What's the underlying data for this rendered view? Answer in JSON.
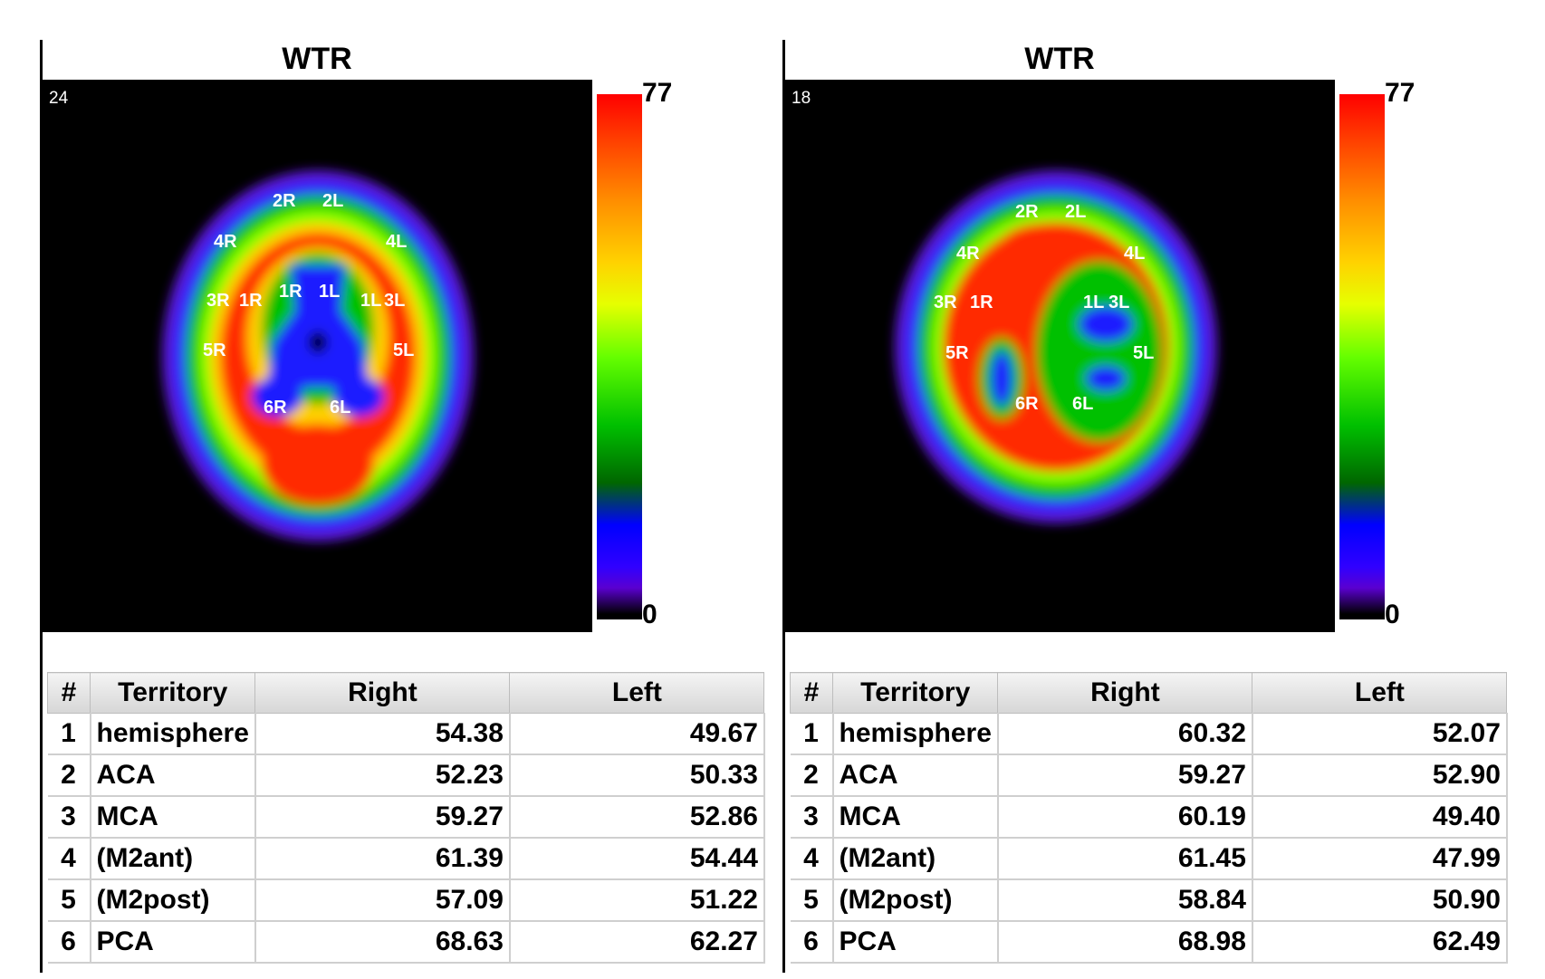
{
  "panels": [
    {
      "title": "WTR",
      "slice_number": "24",
      "colorbar": {
        "max": "77",
        "min": "0"
      },
      "region_labels": [
        "2R",
        "2L",
        "4R",
        "4L",
        "3R",
        "1R",
        "1R",
        "1L",
        "1L",
        "3L",
        "5R",
        "5L",
        "6R",
        "6L"
      ],
      "table": {
        "headers": [
          "#",
          "Territory",
          "Right",
          "Left"
        ],
        "rows": [
          [
            "1",
            "hemisphere",
            "54.38",
            "49.67"
          ],
          [
            "2",
            "ACA",
            "52.23",
            "50.33"
          ],
          [
            "3",
            "MCA",
            "59.27",
            "52.86"
          ],
          [
            "4",
            "(M2ant)",
            "61.39",
            "54.44"
          ],
          [
            "5",
            "(M2post)",
            "57.09",
            "51.22"
          ],
          [
            "6",
            "PCA",
            "68.63",
            "62.27"
          ]
        ]
      }
    },
    {
      "title": "WTR",
      "slice_number": "18",
      "colorbar": {
        "max": "77",
        "min": "0"
      },
      "region_labels": [
        "2R",
        "2L",
        "4R",
        "4L",
        "3R",
        "1R",
        "1L",
        "3L",
        "5R",
        "5L",
        "6R",
        "6L"
      ],
      "table": {
        "headers": [
          "#",
          "Territory",
          "Right",
          "Left"
        ],
        "rows": [
          [
            "1",
            "hemisphere",
            "60.32",
            "52.07"
          ],
          [
            "2",
            "ACA",
            "59.27",
            "52.90"
          ],
          [
            "3",
            "MCA",
            "60.19",
            "49.40"
          ],
          [
            "4",
            "(M2ant)",
            "61.45",
            "47.99"
          ],
          [
            "5",
            "(M2post)",
            "58.84",
            "50.90"
          ],
          [
            "6",
            "PCA",
            "68.98",
            "62.49"
          ]
        ]
      }
    }
  ]
}
